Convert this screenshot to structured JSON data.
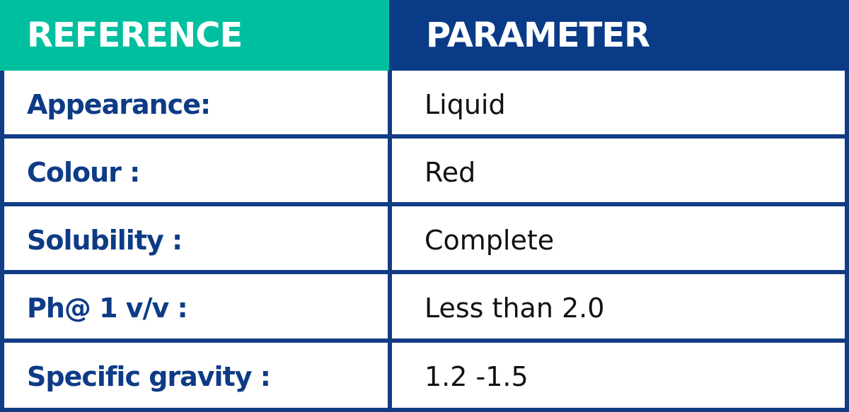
{
  "table": {
    "header": [
      "REFERENCE",
      "PARAMETER"
    ],
    "rows": [
      [
        "Appearance:",
        "Liquid"
      ],
      [
        "Colour :",
        "Red"
      ],
      [
        "Solubility :",
        "Complete"
      ],
      [
        "Ph@ 1 v/v :",
        "Less than 2.0"
      ],
      [
        "Specific gravity :",
        "1.2 -1.5"
      ]
    ]
  }
}
